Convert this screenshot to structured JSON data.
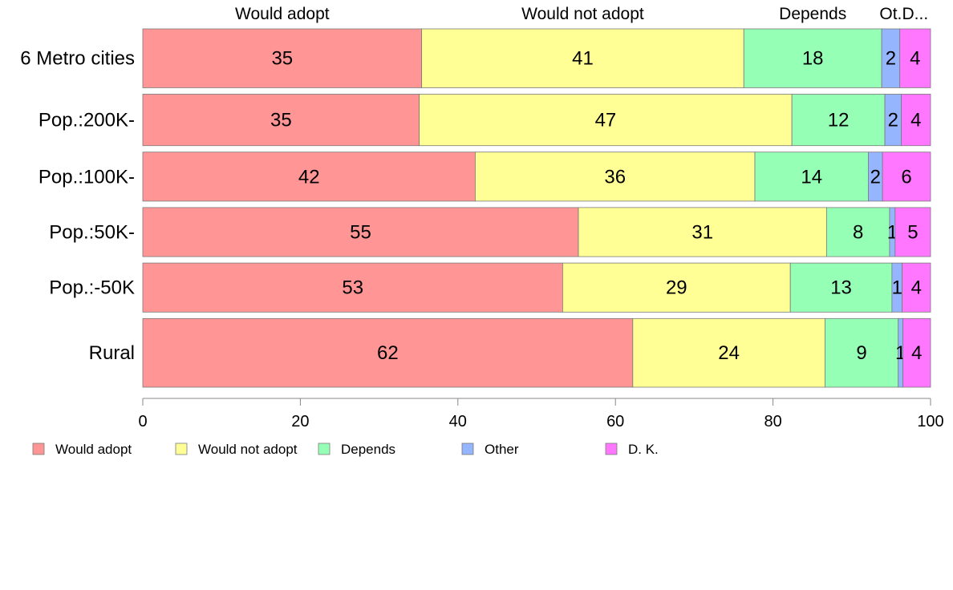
{
  "chart_data": {
    "type": "bar",
    "orientation": "horizontal",
    "stacked": true,
    "title": "",
    "xlabel": "",
    "ylabel": "",
    "xlim": [
      0,
      100
    ],
    "x_ticks": [
      0,
      20,
      40,
      60,
      80,
      100
    ],
    "grid": false,
    "legend_position": "bottom-left",
    "categories": [
      "6 Metro cities",
      "Pop.:200K-",
      "Pop.:100K-",
      "Pop.:50K-",
      "Pop.:-50K",
      "Rural"
    ],
    "category_weights": [
      1.2,
      1.05,
      1.0,
      1.0,
      1.0,
      1.4
    ],
    "top_labels": [
      "Would adopt",
      "Would not adopt",
      "Depends",
      "Ot.",
      "D..."
    ],
    "series": [
      {
        "name": "Would adopt",
        "color": "#ff9595",
        "values": [
          35.4,
          35.1,
          42.2,
          55.3,
          53.3,
          62.2
        ],
        "labels": [
          "35",
          "35",
          "42",
          "55",
          "53",
          "62"
        ]
      },
      {
        "name": "Would not adopt",
        "color": "#ffff95",
        "values": [
          40.9,
          47.3,
          35.5,
          31.5,
          28.9,
          24.4
        ],
        "labels": [
          "41",
          "47",
          "36",
          "31",
          "29",
          "24"
        ]
      },
      {
        "name": "Depends",
        "color": "#95ffb5",
        "values": [
          17.5,
          11.8,
          14.4,
          8.0,
          12.9,
          9.3
        ],
        "labels": [
          "18",
          "12",
          "14",
          "8",
          "13",
          "9"
        ]
      },
      {
        "name": "Other",
        "color": "#95b5ff",
        "values": [
          2.3,
          2.1,
          1.8,
          0.7,
          1.3,
          0.6
        ],
        "labels": [
          "2",
          "2",
          "2",
          "1",
          "1",
          "1"
        ]
      },
      {
        "name": "D. K.",
        "color": "#ff77ff",
        "values": [
          3.9,
          3.7,
          6.1,
          4.5,
          3.6,
          3.5
        ],
        "labels": [
          "4",
          "4",
          "6",
          "5",
          "4",
          "4"
        ]
      }
    ]
  }
}
